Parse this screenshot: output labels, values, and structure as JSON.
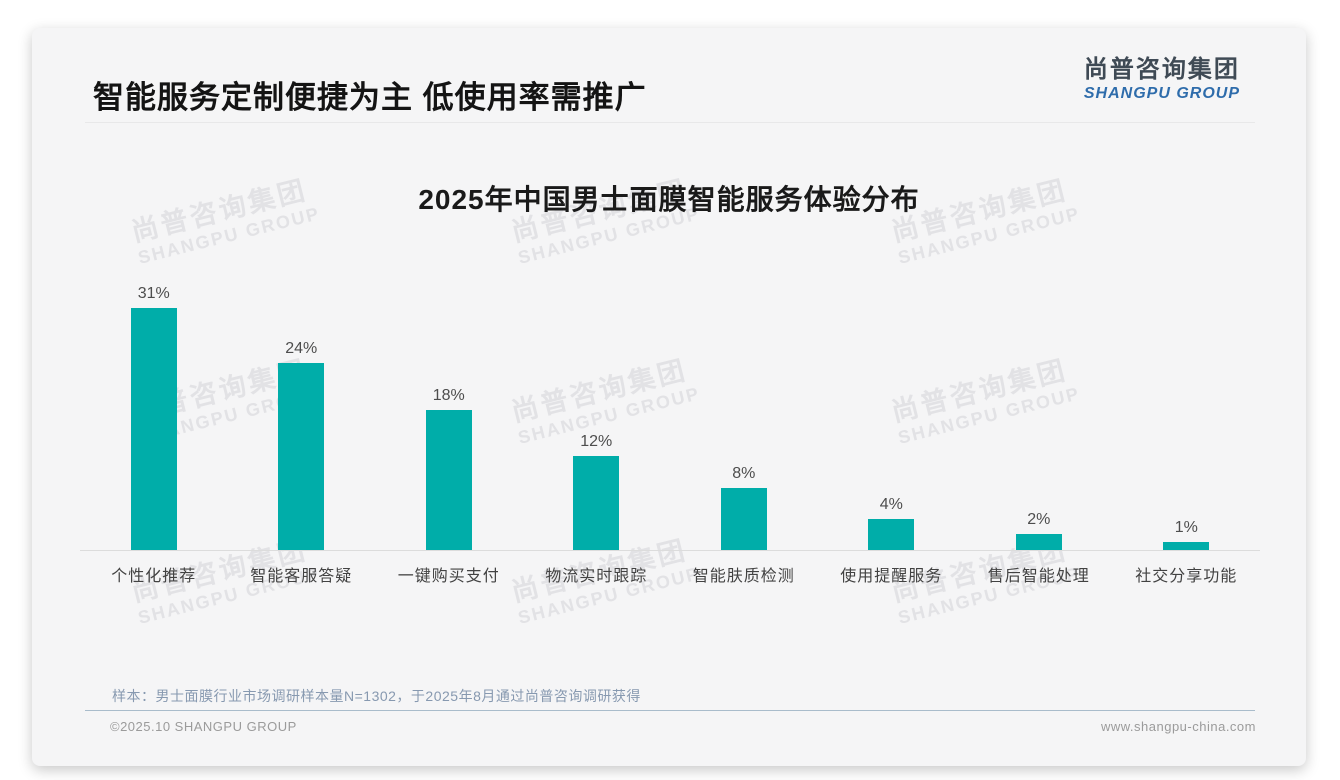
{
  "header": {
    "title": "智能服务定制便捷为主 低使用率需推广"
  },
  "logo": {
    "chinese": "尚普咨询集团",
    "english": "SHANGPU GROUP"
  },
  "watermark": {
    "line1": "尚普咨询集团",
    "line2": "SHANGPU GROUP"
  },
  "chart_data": {
    "type": "bar",
    "title": "2025年中国男士面膜智能服务体验分布",
    "categories": [
      "个性化推荐",
      "智能客服答疑",
      "一键购买支付",
      "物流实时跟踪",
      "智能肤质检测",
      "使用提醒服务",
      "售后智能处理",
      "社交分享功能"
    ],
    "values": [
      31,
      24,
      18,
      12,
      8,
      4,
      2,
      1
    ],
    "value_labels": [
      "31%",
      "24%",
      "18%",
      "12%",
      "8%",
      "4%",
      "2%",
      "1%"
    ],
    "unit": "%",
    "bar_color": "#00ADA9",
    "ylim": [
      0,
      34
    ],
    "grid": false,
    "legend": false,
    "xlabel": "",
    "ylabel": ""
  },
  "footer": {
    "note": "样本：男士面膜行业市场调研样本量N=1302，于2025年8月通过尚普咨询调研获得",
    "copyright": "©2025.10 SHANGPU GROUP",
    "website": "www.shangpu-china.com"
  }
}
